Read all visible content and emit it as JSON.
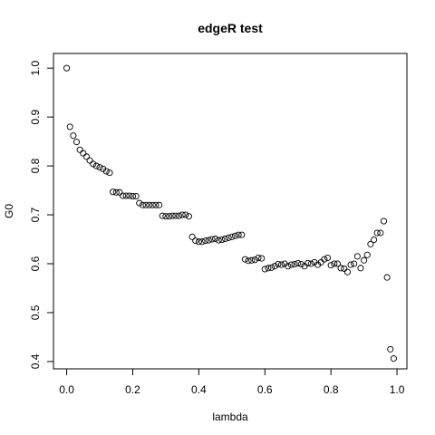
{
  "chart_data": {
    "type": "scatter",
    "title": "edgeR test",
    "xlabel": "lambda",
    "ylabel": "G0",
    "xlim": [
      -0.04,
      1.03
    ],
    "ylim": [
      0.385,
      1.03
    ],
    "xticks": [
      0.0,
      0.2,
      0.4,
      0.6,
      0.8,
      1.0
    ],
    "xtick_labels": [
      "0.0",
      "0.2",
      "0.4",
      "0.6",
      "0.8",
      "1.0"
    ],
    "yticks": [
      0.4,
      0.5,
      0.6,
      0.7,
      0.8,
      0.9,
      1.0
    ],
    "ytick_labels": [
      "0.4",
      "0.5",
      "0.6",
      "0.7",
      "0.8",
      "0.9",
      "1.0"
    ],
    "grid": false,
    "legend": "none",
    "marker": "open-circle",
    "series": [
      {
        "x": [
          0.0,
          0.01,
          0.02,
          0.03,
          0.04,
          0.05,
          0.06,
          0.07,
          0.08,
          0.09,
          0.1,
          0.11,
          0.12,
          0.13,
          0.14,
          0.15,
          0.16,
          0.17,
          0.18,
          0.19,
          0.2,
          0.21,
          0.22,
          0.23,
          0.24,
          0.25,
          0.26,
          0.27,
          0.28,
          0.29,
          0.3,
          0.31,
          0.32,
          0.33,
          0.34,
          0.35,
          0.36,
          0.37,
          0.38,
          0.39,
          0.4,
          0.41,
          0.42,
          0.43,
          0.44,
          0.45,
          0.46,
          0.47,
          0.48,
          0.49,
          0.5,
          0.51,
          0.52,
          0.53,
          0.54,
          0.55,
          0.56,
          0.57,
          0.58,
          0.59,
          0.6,
          0.61,
          0.62,
          0.63,
          0.64,
          0.65,
          0.66,
          0.67,
          0.68,
          0.69,
          0.7,
          0.71,
          0.72,
          0.73,
          0.74,
          0.75,
          0.76,
          0.77,
          0.78,
          0.79,
          0.8,
          0.81,
          0.82,
          0.83,
          0.84,
          0.85,
          0.86,
          0.87,
          0.88,
          0.89,
          0.9,
          0.91,
          0.92,
          0.93,
          0.94,
          0.95,
          0.96,
          0.97,
          0.98,
          0.99
        ],
        "y": [
          1.0,
          0.88,
          0.862,
          0.849,
          0.833,
          0.826,
          0.819,
          0.811,
          0.804,
          0.8,
          0.797,
          0.794,
          0.789,
          0.786,
          0.747,
          0.746,
          0.746,
          0.739,
          0.739,
          0.739,
          0.738,
          0.738,
          0.724,
          0.72,
          0.72,
          0.72,
          0.72,
          0.72,
          0.72,
          0.698,
          0.697,
          0.697,
          0.698,
          0.698,
          0.698,
          0.7,
          0.7,
          0.697,
          0.655,
          0.647,
          0.645,
          0.645,
          0.647,
          0.648,
          0.65,
          0.651,
          0.648,
          0.649,
          0.651,
          0.653,
          0.655,
          0.657,
          0.659,
          0.659,
          0.609,
          0.606,
          0.607,
          0.608,
          0.612,
          0.611,
          0.589,
          0.591,
          0.592,
          0.595,
          0.599,
          0.598,
          0.6,
          0.595,
          0.598,
          0.599,
          0.601,
          0.599,
          0.595,
          0.601,
          0.6,
          0.603,
          0.598,
          0.603,
          0.609,
          0.612,
          0.597,
          0.6,
          0.6,
          0.591,
          0.59,
          0.583,
          0.598,
          0.6,
          0.615,
          0.591,
          0.607,
          0.618,
          0.64,
          0.649,
          0.663,
          0.663,
          0.687,
          0.572,
          0.425,
          0.406
        ]
      }
    ]
  }
}
